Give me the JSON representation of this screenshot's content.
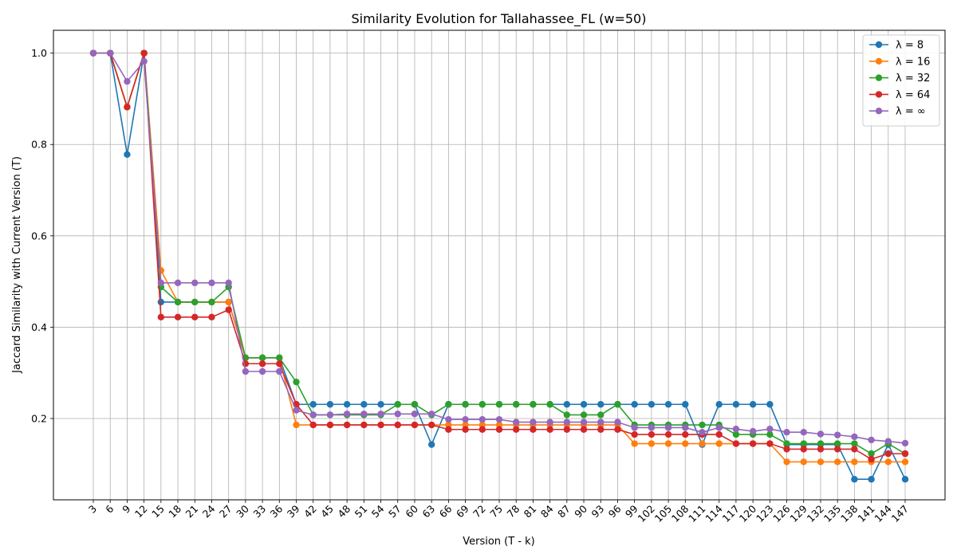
{
  "chart_data": {
    "type": "line",
    "title": "Similarity Evolution for Tallahassee_FL (w=50)",
    "xlabel": "Version (T - k)",
    "ylabel": "Jaccard Similarity with Current Version (T)",
    "x": [
      3,
      6,
      9,
      12,
      15,
      18,
      21,
      24,
      27,
      30,
      33,
      36,
      39,
      42,
      45,
      48,
      51,
      54,
      57,
      60,
      63,
      66,
      69,
      72,
      75,
      78,
      81,
      84,
      87,
      90,
      93,
      96,
      99,
      102,
      105,
      108,
      111,
      114,
      117,
      120,
      123,
      126,
      129,
      132,
      135,
      138,
      141,
      144,
      147
    ],
    "ylim": [
      0.022,
      1.05
    ],
    "yticks": [
      0.2,
      0.4,
      0.6,
      0.8,
      1.0
    ],
    "yticklabels": [
      "0.2",
      "0.4",
      "0.6",
      "0.8",
      "1.0"
    ],
    "grid": true,
    "legend_position": "top-right",
    "series": [
      {
        "name": "λ = 8",
        "color": "#1f77b4",
        "values": [
          1.0,
          1.0,
          0.778,
          1.0,
          0.455,
          0.455,
          0.455,
          0.455,
          0.455,
          0.333,
          0.333,
          0.333,
          0.231,
          0.231,
          0.231,
          0.231,
          0.231,
          0.231,
          0.231,
          0.231,
          0.143,
          0.231,
          0.231,
          0.231,
          0.231,
          0.231,
          0.231,
          0.231,
          0.231,
          0.231,
          0.231,
          0.231,
          0.231,
          0.231,
          0.231,
          0.231,
          0.143,
          0.231,
          0.231,
          0.231,
          0.231,
          0.143,
          0.143,
          0.143,
          0.143,
          0.067,
          0.067,
          0.143,
          0.067
        ]
      },
      {
        "name": "λ = 16",
        "color": "#ff7f0e",
        "values": [
          1.0,
          1.0,
          0.882,
          1.0,
          0.524,
          0.455,
          0.455,
          0.455,
          0.455,
          0.333,
          0.333,
          0.333,
          0.186,
          0.186,
          0.186,
          0.186,
          0.186,
          0.186,
          0.186,
          0.186,
          0.186,
          0.186,
          0.186,
          0.186,
          0.186,
          0.186,
          0.186,
          0.186,
          0.186,
          0.186,
          0.186,
          0.186,
          0.145,
          0.145,
          0.145,
          0.145,
          0.145,
          0.145,
          0.145,
          0.145,
          0.145,
          0.105,
          0.105,
          0.105,
          0.105,
          0.105,
          0.105,
          0.105,
          0.105
        ]
      },
      {
        "name": "λ = 32",
        "color": "#2ca02c",
        "values": [
          1.0,
          1.0,
          0.882,
          1.0,
          0.488,
          0.455,
          0.455,
          0.455,
          0.488,
          0.333,
          0.333,
          0.333,
          0.28,
          0.208,
          0.208,
          0.208,
          0.208,
          0.208,
          0.231,
          0.231,
          0.208,
          0.231,
          0.231,
          0.231,
          0.231,
          0.231,
          0.231,
          0.231,
          0.208,
          0.208,
          0.208,
          0.231,
          0.186,
          0.186,
          0.186,
          0.186,
          0.186,
          0.186,
          0.165,
          0.165,
          0.165,
          0.145,
          0.145,
          0.145,
          0.145,
          0.145,
          0.123,
          0.145,
          0.123
        ]
      },
      {
        "name": "λ = 64",
        "color": "#d62728",
        "values": [
          1.0,
          1.0,
          0.882,
          1.0,
          0.422,
          0.422,
          0.422,
          0.422,
          0.438,
          0.32,
          0.32,
          0.32,
          0.231,
          0.186,
          0.186,
          0.186,
          0.186,
          0.186,
          0.186,
          0.186,
          0.186,
          0.176,
          0.176,
          0.176,
          0.176,
          0.176,
          0.176,
          0.176,
          0.176,
          0.176,
          0.176,
          0.176,
          0.165,
          0.165,
          0.165,
          0.165,
          0.165,
          0.165,
          0.145,
          0.145,
          0.145,
          0.133,
          0.133,
          0.133,
          0.133,
          0.133,
          0.111,
          0.123,
          0.123
        ]
      },
      {
        "name": "λ = ∞",
        "color": "#9467bd",
        "values": [
          1.0,
          1.0,
          0.938,
          0.982,
          0.497,
          0.497,
          0.497,
          0.497,
          0.497,
          0.303,
          0.303,
          0.303,
          0.218,
          0.208,
          0.208,
          0.21,
          0.21,
          0.21,
          0.21,
          0.21,
          0.21,
          0.198,
          0.198,
          0.198,
          0.198,
          0.192,
          0.192,
          0.192,
          0.192,
          0.192,
          0.192,
          0.192,
          0.18,
          0.18,
          0.18,
          0.18,
          0.17,
          0.18,
          0.177,
          0.172,
          0.177,
          0.17,
          0.17,
          0.166,
          0.164,
          0.16,
          0.153,
          0.15,
          0.146
        ]
      }
    ]
  }
}
